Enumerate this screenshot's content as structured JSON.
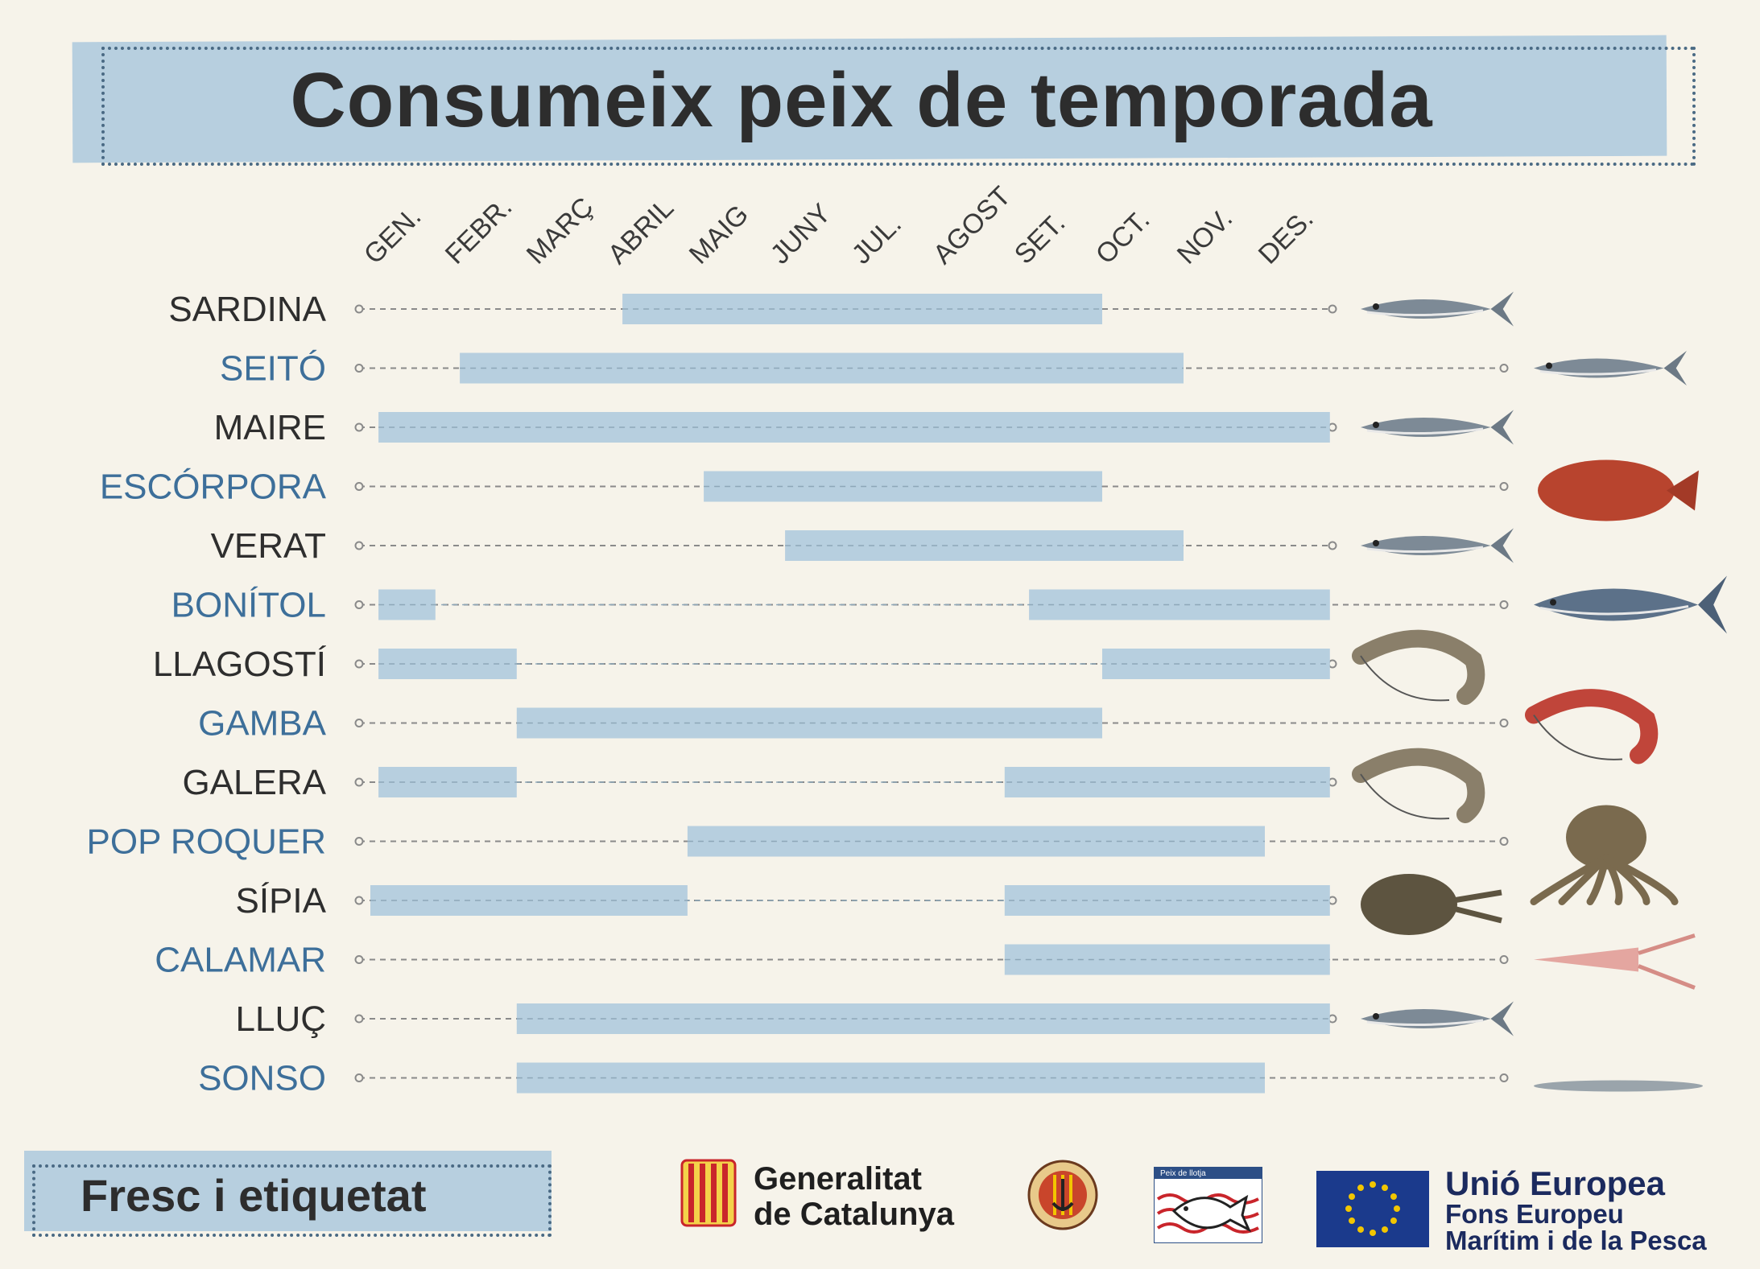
{
  "title": "Consumeix peix de temporada",
  "months": [
    "GEN.",
    "FEBR.",
    "MARÇ",
    "ABRIL",
    "MAIG",
    "JUNY",
    "JUL.",
    "AGOST",
    "SET.",
    "OCT.",
    "NOV.",
    "DES."
  ],
  "species": [
    {
      "name": "SARDINA",
      "color": "#2e2e2e",
      "icon": "sardine-icon",
      "seasons": [
        [
          3.1,
          9.0
        ]
      ]
    },
    {
      "name": "SEITÓ",
      "color": "#3d6f9a",
      "icon": "anchovy-icon",
      "seasons": [
        [
          1.1,
          10.0
        ]
      ]
    },
    {
      "name": "MAIRE",
      "color": "#2e2e2e",
      "icon": "blue-whiting-icon",
      "seasons": [
        [
          0.1,
          11.8
        ]
      ]
    },
    {
      "name": "ESCÓRPORA",
      "color": "#3d6f9a",
      "icon": "scorpionfish-icon",
      "seasons": [
        [
          4.1,
          9.0
        ]
      ]
    },
    {
      "name": "VERAT",
      "color": "#2e2e2e",
      "icon": "mackerel-icon",
      "seasons": [
        [
          5.1,
          10.0
        ]
      ]
    },
    {
      "name": "BONÍTOL",
      "color": "#3d6f9a",
      "icon": "bonito-icon",
      "seasons": [
        [
          0.1,
          0.8
        ],
        [
          8.1,
          11.8
        ]
      ]
    },
    {
      "name": "LLAGOSTÍ",
      "color": "#2e2e2e",
      "icon": "prawn-icon",
      "seasons": [
        [
          0.1,
          1.8
        ],
        [
          9.0,
          11.8
        ]
      ]
    },
    {
      "name": "GAMBA",
      "color": "#3d6f9a",
      "icon": "red-shrimp-icon",
      "seasons": [
        [
          1.8,
          9.0
        ]
      ]
    },
    {
      "name": "GALERA",
      "color": "#2e2e2e",
      "icon": "mantis-shrimp-icon",
      "seasons": [
        [
          0.1,
          1.8
        ],
        [
          7.8,
          11.8
        ]
      ]
    },
    {
      "name": "POP ROQUER",
      "color": "#3d6f9a",
      "icon": "octopus-icon",
      "seasons": [
        [
          3.9,
          11.0
        ]
      ]
    },
    {
      "name": "SÍPIA",
      "color": "#2e2e2e",
      "icon": "cuttlefish-icon",
      "seasons": [
        [
          0.0,
          3.9
        ],
        [
          7.8,
          11.8
        ]
      ]
    },
    {
      "name": "CALAMAR",
      "color": "#3d6f9a",
      "icon": "squid-icon",
      "seasons": [
        [
          7.8,
          11.8
        ]
      ]
    },
    {
      "name": "LLUÇ",
      "color": "#2e2e2e",
      "icon": "hake-icon",
      "seasons": [
        [
          1.8,
          11.8
        ]
      ]
    },
    {
      "name": "SONSO",
      "color": "#3d6f9a",
      "icon": "sand-smelt-icon",
      "seasons": [
        [
          1.8,
          11.0
        ]
      ]
    }
  ],
  "footer": {
    "label": "Fresc i etiquetat",
    "generalitat_line1": "Generalitat",
    "generalitat_line2": "de Catalunya",
    "llotja_label": "Peix de llotja",
    "eu_line1": "Unió Europea",
    "eu_line2": "Fons Europeu",
    "eu_line3": "Marítim i de la Pesca"
  },
  "colors": {
    "bar": "#b7cfdf",
    "dashed_line": "#8a8a8a",
    "eu_blue": "#1b3a8c",
    "eu_star": "#f2c600"
  }
}
